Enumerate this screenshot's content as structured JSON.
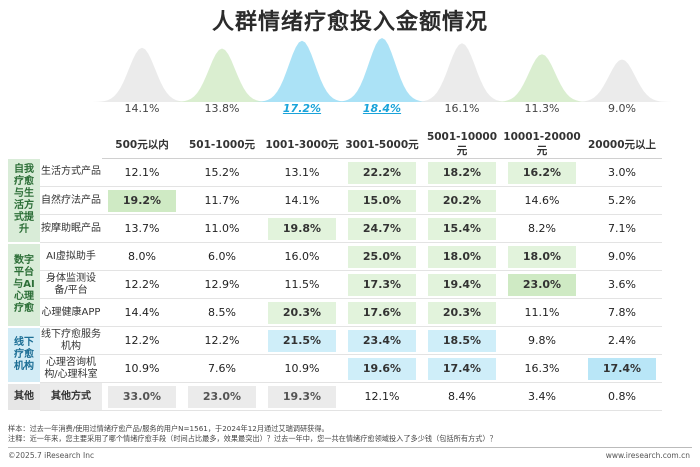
{
  "title": "人群情绪疗愈投入金额情况",
  "chart_data": {
    "type": "table",
    "title": "人群情绪疗愈投入金额情况",
    "columns": [
      "500元以内",
      "501-1000元",
      "1001-3000元",
      "3001-5000元",
      "5001-10000元",
      "10001-20000元",
      "20000元以上"
    ],
    "overall": [
      "14.1%",
      "13.8%",
      "17.2%",
      "18.4%",
      "16.1%",
      "11.3%",
      "9.0%"
    ],
    "overall_values": [
      14.1,
      13.8,
      17.2,
      18.4,
      16.1,
      11.3,
      9.0
    ],
    "overall_highlight": [
      false,
      false,
      true,
      true,
      false,
      false,
      false
    ],
    "groups": [
      {
        "name": "自我疗愈与生活方式提升",
        "rows": [
          {
            "label": "生活方式产品",
            "values": [
              "12.1%",
              "15.2%",
              "13.1%",
              "22.2%",
              "18.2%",
              "16.2%",
              "3.0%"
            ],
            "style": [
              "",
              "",
              "",
              "g",
              "g",
              "g",
              ""
            ]
          },
          {
            "label": "自然疗法产品",
            "values": [
              "19.2%",
              "11.7%",
              "14.1%",
              "15.0%",
              "20.2%",
              "14.6%",
              "5.2%"
            ],
            "style": [
              "g2",
              "",
              "",
              "g",
              "g",
              "",
              ""
            ]
          },
          {
            "label": "按摩助眠产品",
            "values": [
              "13.7%",
              "11.0%",
              "19.8%",
              "24.7%",
              "15.4%",
              "8.2%",
              "7.1%"
            ],
            "style": [
              "",
              "",
              "g",
              "g",
              "g",
              "",
              ""
            ]
          }
        ]
      },
      {
        "name": "数字平台与AI心理疗愈",
        "rows": [
          {
            "label": "AI虚拟助手",
            "values": [
              "8.0%",
              "6.0%",
              "16.0%",
              "25.0%",
              "18.0%",
              "18.0%",
              "9.0%"
            ],
            "style": [
              "",
              "",
              "",
              "g",
              "g",
              "g",
              ""
            ]
          },
          {
            "label": "身体监测设备/平台",
            "values": [
              "12.2%",
              "12.9%",
              "11.5%",
              "17.3%",
              "19.4%",
              "23.0%",
              "3.6%"
            ],
            "style": [
              "",
              "",
              "",
              "g",
              "g",
              "g2",
              ""
            ]
          },
          {
            "label": "心理健康APP",
            "values": [
              "14.4%",
              "8.5%",
              "20.3%",
              "17.6%",
              "20.3%",
              "11.1%",
              "7.8%"
            ],
            "style": [
              "",
              "",
              "g",
              "g",
              "g",
              "",
              ""
            ]
          }
        ]
      },
      {
        "name": "线下疗愈机构",
        "rows": [
          {
            "label": "线下疗愈服务机构",
            "values": [
              "12.2%",
              "12.2%",
              "21.5%",
              "23.4%",
              "18.5%",
              "9.8%",
              "2.4%"
            ],
            "style": [
              "",
              "",
              "b",
              "b",
              "b",
              "",
              ""
            ]
          },
          {
            "label": "心理咨询机构/心理科室",
            "values": [
              "10.9%",
              "7.6%",
              "10.9%",
              "19.6%",
              "17.4%",
              "16.3%",
              "17.4%"
            ],
            "style": [
              "",
              "",
              "",
              "b",
              "b",
              "",
              "b2"
            ]
          }
        ]
      },
      {
        "name": "其他",
        "rows": [
          {
            "label": "其他方式",
            "values": [
              "33.0%",
              "23.0%",
              "19.3%",
              "12.1%",
              "8.4%",
              "3.4%",
              "0.8%"
            ],
            "style": [
              "k",
              "k",
              "k",
              "",
              "",
              "",
              ""
            ]
          }
        ]
      }
    ]
  },
  "notes": {
    "sample": "样本：过去一年消费/使用过情绪疗愈产品/服务的用户N=1561，于2024年12月通过艾瑞调研获得。",
    "note": "注释：近一年来，您主要采用了哪个情绪疗愈手段（时间占比最多，效果最突出）？过去一年中，您一共在情绪疗愈领域投入了多少钱（包括所有方式）？"
  },
  "footer": {
    "left": "©2025.7 iResearch Inc",
    "right": "www.iresearch.com.cn"
  },
  "colors": {
    "green_bell": "#cde8c0",
    "gray_bell": "#e4e4e4",
    "blue_bell": "#8fd8f3",
    "green_cell": "#e2f3dc",
    "blue_cell": "#cfeef9",
    "highlight_text": "#1aa3d9"
  }
}
